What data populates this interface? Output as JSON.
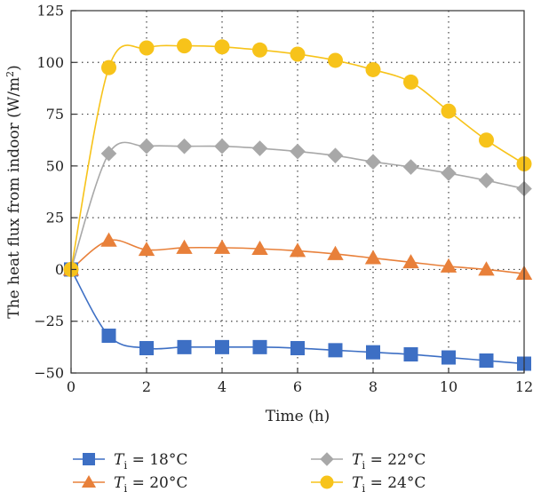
{
  "chart_data": {
    "type": "line",
    "xlabel": "Time (h)",
    "ylabel": "The heat flux from indoor (W/m²)",
    "ylabel_parts": {
      "main": "The heat flux from indoor (W/m",
      "sup": "2",
      "end": ")"
    },
    "xlim": [
      0,
      12
    ],
    "ylim": [
      -50,
      125
    ],
    "xticks": [
      0,
      2,
      4,
      6,
      8,
      10,
      12
    ],
    "yticks": [
      -50,
      -25,
      0,
      25,
      50,
      75,
      100,
      125
    ],
    "grid": true,
    "legend_placement": "bottom",
    "x": [
      0,
      1,
      2,
      3,
      4,
      5,
      6,
      7,
      8,
      9,
      10,
      11,
      12
    ],
    "series": [
      {
        "name": "Ti = 18°C",
        "label": {
          "var": "T",
          "sub": "i",
          "rest": " = 18°C"
        },
        "marker": "square",
        "color": "#3d6fc4",
        "values": [
          0,
          -32,
          -38,
          -37.5,
          -37.5,
          -37.5,
          -38,
          -39,
          -40,
          -41,
          -42.5,
          -44,
          -45.5
        ]
      },
      {
        "name": "Ti = 20°C",
        "label": {
          "var": "T",
          "sub": "i",
          "rest": " = 20°C"
        },
        "marker": "triangle",
        "color": "#e8803a",
        "values": [
          0,
          14,
          9.5,
          10.5,
          10.5,
          10,
          9,
          7.5,
          5.5,
          3.5,
          1.5,
          0,
          -2
        ]
      },
      {
        "name": "Ti = 22°C",
        "label": {
          "var": "T",
          "sub": "i",
          "rest": " = 22°C"
        },
        "marker": "diamond",
        "color": "#a8a8a8",
        "values": [
          0,
          56,
          59.5,
          59.5,
          59.5,
          58.5,
          57,
          55,
          52,
          49.5,
          46.5,
          43,
          39
        ]
      },
      {
        "name": "Ti = 24°C",
        "label": {
          "var": "T",
          "sub": "i",
          "rest": " = 24°C"
        },
        "marker": "circle",
        "color": "#f7c31a",
        "values": [
          0,
          97.5,
          107,
          108,
          107.5,
          106,
          104,
          101,
          96.5,
          90.5,
          76.5,
          62.5,
          51
        ]
      }
    ]
  }
}
